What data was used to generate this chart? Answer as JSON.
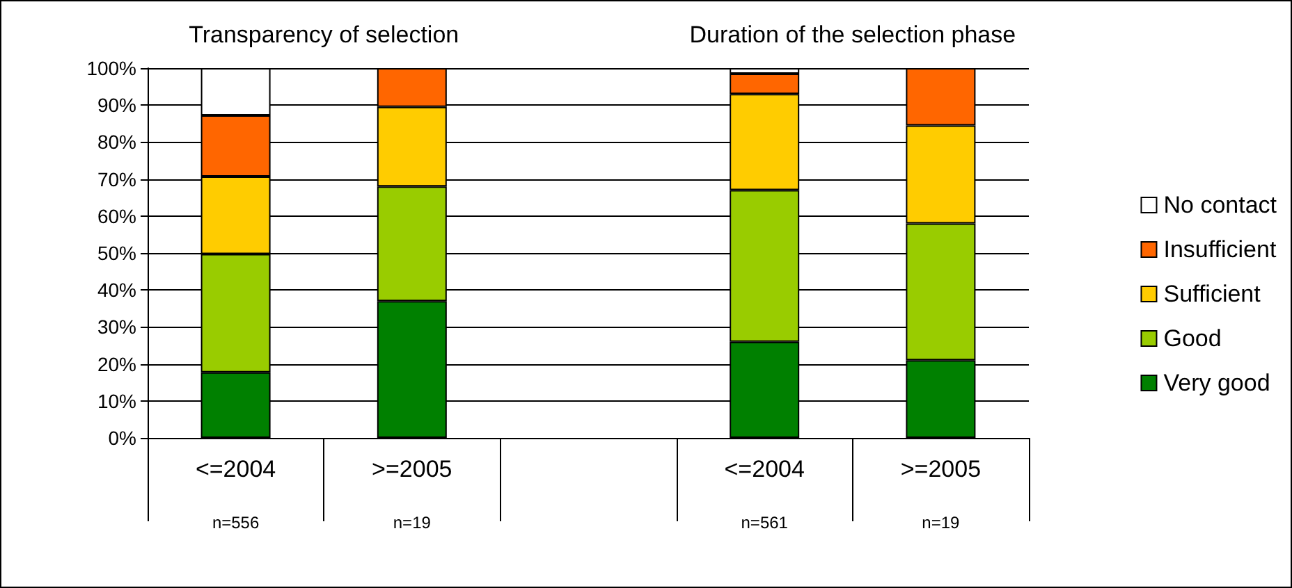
{
  "chart_data": {
    "type": "bar",
    "stacked": true,
    "categories": [
      "<=2004",
      ">=2005",
      null,
      "<=2004",
      ">=2005"
    ],
    "series": [
      {
        "name": "Very good",
        "color": "#008000",
        "values": [
          17.7,
          37,
          null,
          26,
          21
        ]
      },
      {
        "name": "Good",
        "color": "#99cc00",
        "values": [
          32,
          31,
          null,
          41,
          37
        ]
      },
      {
        "name": "Sufficient",
        "color": "#ffcc00",
        "values": [
          21,
          21.5,
          null,
          26,
          26.5
        ]
      },
      {
        "name": "Insufficient",
        "color": "#ff6600",
        "values": [
          16.5,
          10.5,
          null,
          5.5,
          15.5
        ]
      },
      {
        "name": "No contact",
        "color": "#ffffff",
        "values": [
          12.8,
          null,
          null,
          1.5,
          null
        ]
      }
    ],
    "ylim": [
      0,
      100
    ],
    "yticks": [
      {
        "value": 0,
        "label": "0%"
      },
      {
        "value": 10,
        "label": "10%"
      },
      {
        "value": 20,
        "label": "20%"
      },
      {
        "value": 30,
        "label": "30%"
      },
      {
        "value": 40,
        "label": "40%"
      },
      {
        "value": 50,
        "label": "50%"
      },
      {
        "value": 60,
        "label": "60%"
      },
      {
        "value": 70,
        "label": "70%"
      },
      {
        "value": 80,
        "label": "80%"
      },
      {
        "value": 90,
        "label": "90%"
      },
      {
        "value": 100,
        "label": "100%"
      }
    ],
    "grid": "y",
    "legend": "right",
    "annotations": [
      "Transparency of selection",
      "Duration of the selection phase",
      "n=556",
      "n=19",
      "n=561",
      "n=19"
    ]
  }
}
